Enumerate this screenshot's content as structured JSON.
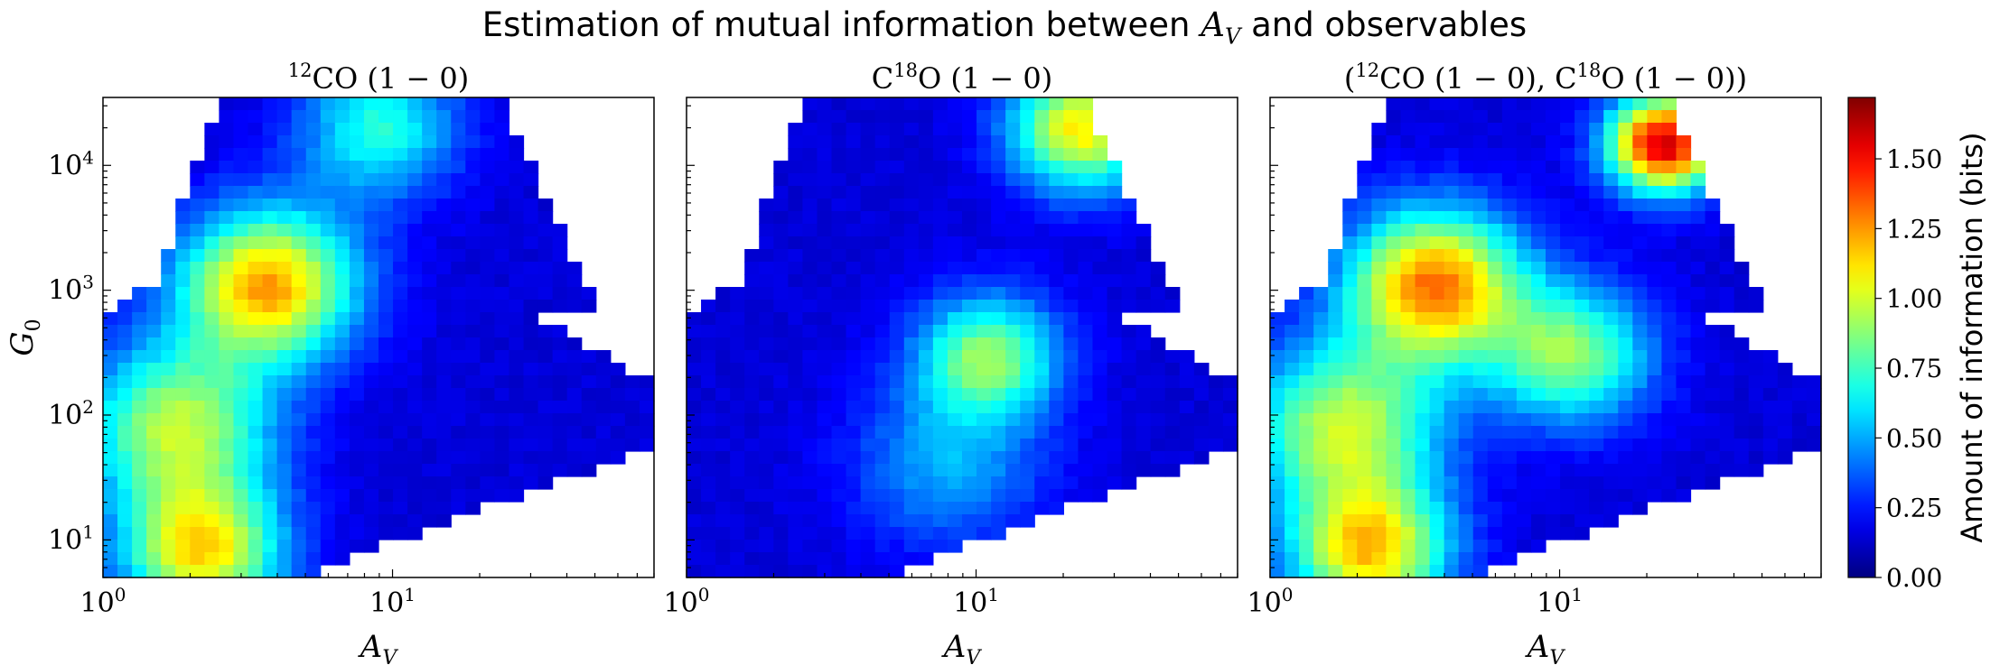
{
  "figure": {
    "suptitle_prefix": "Estimation of mutual information between ",
    "suptitle_math": "A",
    "suptitle_sub": "V",
    "suptitle_suffix": " and observables"
  },
  "colorbar": {
    "label": "Amount of information (bits)",
    "colormap": "jet",
    "range": [
      0,
      1.72
    ],
    "ticks": [
      0.0,
      0.25,
      0.5,
      0.75,
      1.0,
      1.25,
      1.5
    ],
    "tick_labels": [
      "0.00",
      "0.25",
      "0.50",
      "0.75",
      "1.00",
      "1.25",
      "1.50"
    ]
  },
  "chart_data": [
    {
      "type": "heatmap",
      "title": "12CO (1 − 0)",
      "title_parts": {
        "pre": "",
        "sup": "12",
        "species": "CO",
        "transition": "(1 − 0)"
      },
      "xlabel": "A_V",
      "ylabel": "G_0",
      "x_scale": "log",
      "y_scale": "log",
      "xlim": [
        1,
        80
      ],
      "ylim": [
        5,
        35000
      ],
      "x_ticks": [
        1,
        10
      ],
      "x_tick_labels": [
        "10^0",
        "10^1"
      ],
      "y_ticks": [
        10,
        100,
        1000,
        10000
      ],
      "y_tick_labels": [
        "10^1",
        "10^2",
        "10^3",
        "10^4"
      ],
      "hotspots": [
        {
          "x": 3.7,
          "y": 1100,
          "value": 1.08,
          "spread": 0.55
        },
        {
          "x": 2.2,
          "y": 8,
          "value": 0.95,
          "spread": 0.5
        },
        {
          "x": 1.8,
          "y": 80,
          "value": 0.8,
          "spread": 0.6
        },
        {
          "x": 9,
          "y": 20000,
          "value": 0.55,
          "spread": 0.5
        }
      ]
    },
    {
      "type": "heatmap",
      "title": "C18O (1 − 0)",
      "title_parts": {
        "pre": "C",
        "sup": "18",
        "species": "O",
        "transition": "(1 − 0)"
      },
      "xlabel": "A_V",
      "ylabel": "",
      "x_scale": "log",
      "y_scale": "log",
      "xlim": [
        1,
        80
      ],
      "ylim": [
        5,
        35000
      ],
      "x_ticks": [
        1,
        10
      ],
      "x_tick_labels": [
        "10^0",
        "10^1"
      ],
      "hotspots": [
        {
          "x": 11,
          "y": 300,
          "value": 0.72,
          "spread": 0.45
        },
        {
          "x": 23,
          "y": 20000,
          "value": 0.95,
          "spread": 0.45
        },
        {
          "x": 8,
          "y": 40,
          "value": 0.35,
          "spread": 0.6
        }
      ]
    },
    {
      "type": "heatmap",
      "title": "(12CO (1 − 0), C18O (1 − 0))",
      "title_parts": {
        "a_sup": "12",
        "a_species": "CO",
        "b_pre": "C",
        "b_sup": "18",
        "b_species": "O",
        "transition": "(1 − 0)"
      },
      "xlabel": "A_V",
      "ylabel": "",
      "x_scale": "log",
      "y_scale": "log",
      "xlim": [
        1,
        80
      ],
      "ylim": [
        5,
        35000
      ],
      "x_ticks": [
        1,
        10
      ],
      "x_tick_labels": [
        "10^0",
        "10^1"
      ],
      "hotspots": [
        {
          "x": 3.7,
          "y": 1100,
          "value": 1.15,
          "spread": 0.55
        },
        {
          "x": 23,
          "y": 15000,
          "value": 1.45,
          "spread": 0.35
        },
        {
          "x": 2.2,
          "y": 8,
          "value": 0.98,
          "spread": 0.5
        },
        {
          "x": 11,
          "y": 300,
          "value": 0.72,
          "spread": 0.5
        },
        {
          "x": 1.8,
          "y": 80,
          "value": 0.82,
          "spread": 0.6
        }
      ]
    }
  ]
}
